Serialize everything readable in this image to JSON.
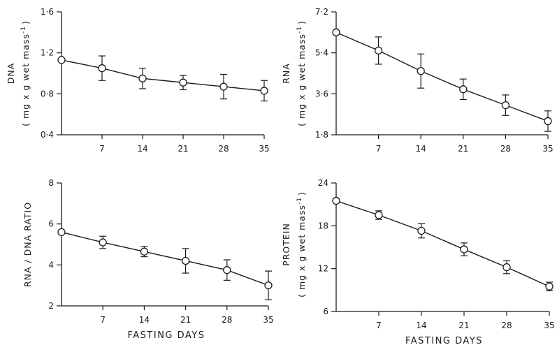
{
  "chart_data": [
    {
      "type": "line",
      "panel": "top-left",
      "ylabel": "DNA",
      "ylabel_units": "( mg x g wet mass",
      "ylabel_exp": "-1",
      "ylabel_close": ")",
      "yticks": [
        "0·4",
        "0·8",
        "1·2",
        "1·6"
      ],
      "ylim": [
        0.4,
        1.6
      ],
      "xticks": [
        "7",
        "14",
        "21",
        "28",
        "35"
      ],
      "xlim": [
        0,
        35
      ],
      "xlabel": "",
      "x": [
        0,
        7,
        14,
        21,
        28,
        35
      ],
      "y": [
        1.13,
        1.05,
        0.95,
        0.91,
        0.87,
        0.83
      ],
      "err": [
        0.0,
        0.12,
        0.1,
        0.07,
        0.12,
        0.1
      ]
    },
    {
      "type": "line",
      "panel": "top-right",
      "ylabel": "RNA",
      "ylabel_units": "( mg x g wet mass",
      "ylabel_exp": "-1",
      "ylabel_close": ")",
      "yticks": [
        "1·8",
        "3·6",
        "5·4",
        "7·2"
      ],
      "ylim": [
        1.8,
        7.2
      ],
      "xticks": [
        "7",
        "14",
        "21",
        "28",
        "35"
      ],
      "xlim": [
        0,
        35
      ],
      "xlabel": "",
      "x": [
        0,
        7,
        14,
        21,
        28,
        35
      ],
      "y": [
        6.3,
        5.5,
        4.6,
        3.8,
        3.1,
        2.4
      ],
      "err": [
        0.0,
        0.6,
        0.75,
        0.45,
        0.45,
        0.45
      ]
    },
    {
      "type": "line",
      "panel": "bottom-left",
      "ylabel": "RNA / DNA RATIO",
      "ylabel_units": "",
      "ylabel_exp": "",
      "ylabel_close": "",
      "yticks": [
        "2",
        "4",
        "6",
        "8"
      ],
      "ylim": [
        2,
        8
      ],
      "xticks": [
        "7",
        "14",
        "21",
        "28",
        "35"
      ],
      "xlim": [
        0,
        35
      ],
      "xlabel": "FASTING DAYS",
      "x": [
        0,
        7,
        14,
        21,
        28,
        35
      ],
      "y": [
        5.6,
        5.1,
        4.65,
        4.2,
        3.75,
        3.0
      ],
      "err": [
        0.0,
        0.3,
        0.25,
        0.6,
        0.5,
        0.7
      ]
    },
    {
      "type": "line",
      "panel": "bottom-right",
      "ylabel": "PROTEIN",
      "ylabel_units": "( mg x g wet mass",
      "ylabel_exp": "-1",
      "ylabel_close": ")",
      "yticks": [
        "6",
        "12",
        "18",
        "24"
      ],
      "ylim": [
        6,
        24
      ],
      "xticks": [
        "7",
        "14",
        "21",
        "28",
        "35"
      ],
      "xlim": [
        0,
        35
      ],
      "xlabel": "FASTING DAYS",
      "x": [
        0,
        7,
        14,
        21,
        28,
        35
      ],
      "y": [
        21.5,
        19.5,
        17.3,
        14.7,
        12.2,
        9.5
      ],
      "err": [
        0.0,
        0.6,
        1.0,
        0.9,
        0.9,
        0.6
      ]
    }
  ]
}
